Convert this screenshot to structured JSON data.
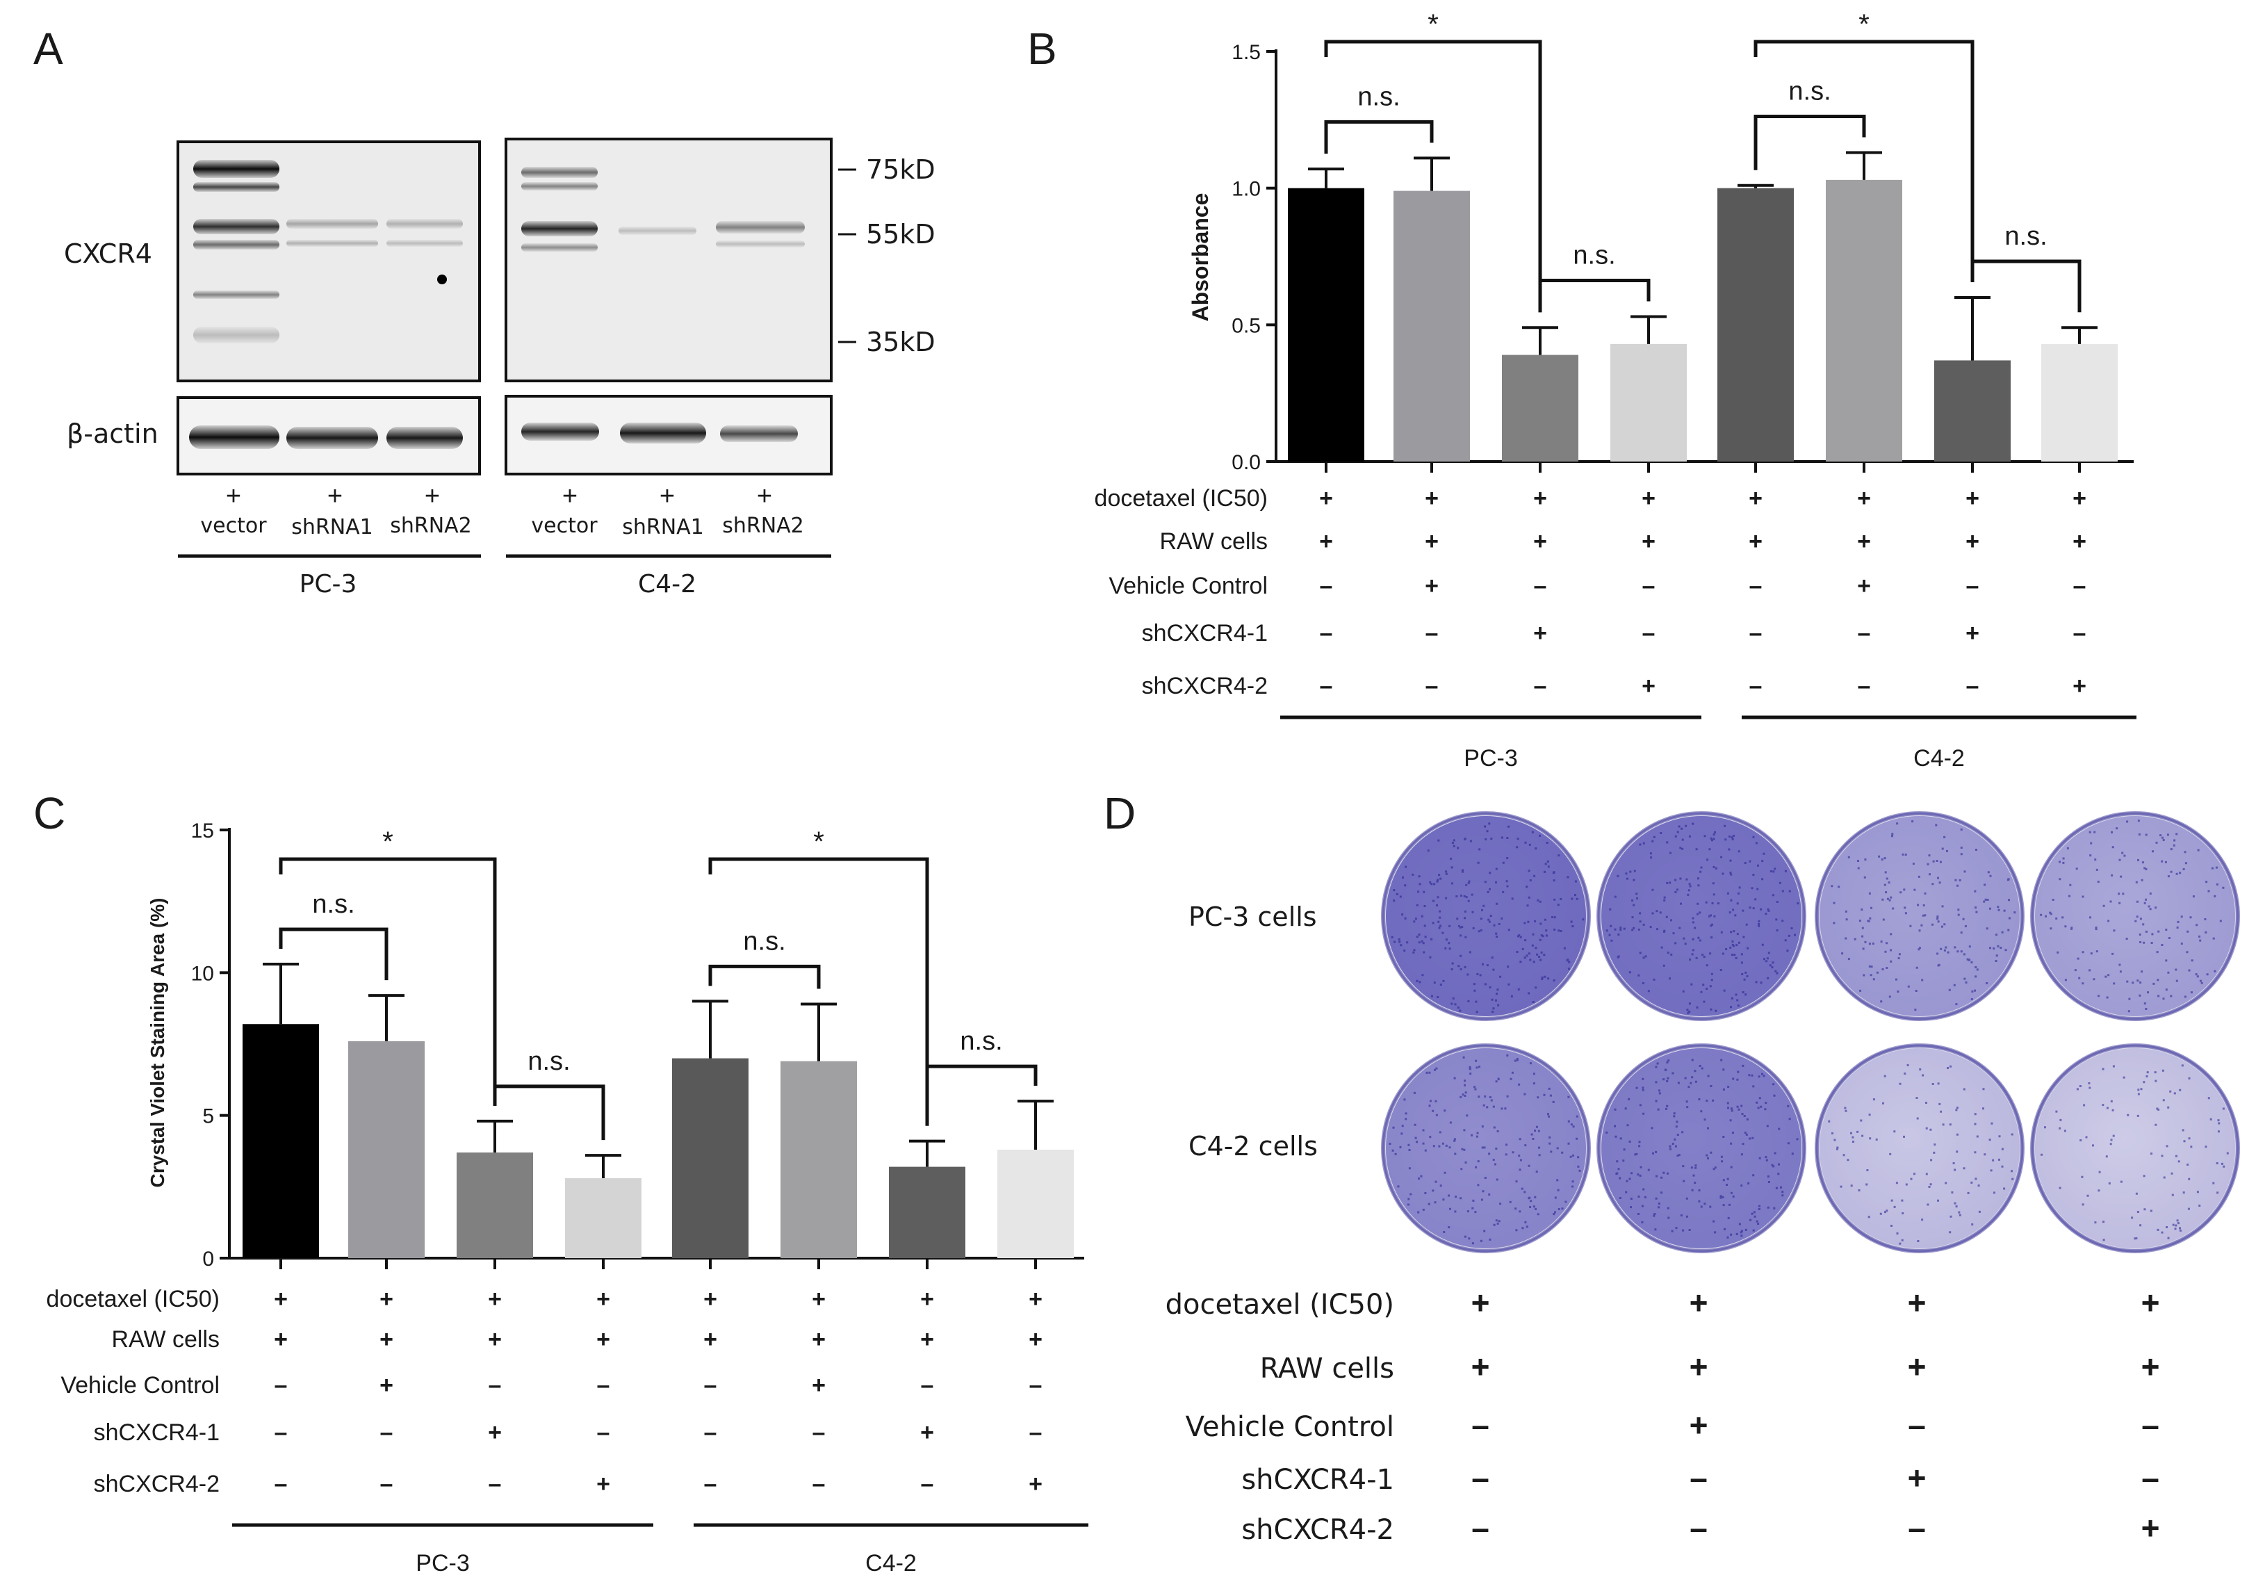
{
  "panel_letters": [
    "A",
    "B",
    "C",
    "D"
  ],
  "panelA": {
    "cxcr4_label": "CXCR4",
    "actin_label": "β-actin",
    "markers": [
      "75kD",
      "55kD",
      "35kD"
    ],
    "lane_sign": "+",
    "lanes": [
      "vector",
      "shRNA1",
      "shRNA2",
      "vector",
      "shRNA1",
      "shRNA2"
    ],
    "groups": [
      "PC-3",
      "C4-2"
    ]
  },
  "condition_labels": [
    "docetaxel (IC50)",
    "RAW cells",
    "Vehicle Control",
    "shCXCR4-1",
    "shCXCR4-2"
  ],
  "condition_matrix": [
    [
      "+",
      "+",
      "+",
      "+",
      "+",
      "+",
      "+",
      "+"
    ],
    [
      "+",
      "+",
      "+",
      "+",
      "+",
      "+",
      "+",
      "+"
    ],
    [
      "–",
      "+",
      "–",
      "–",
      "–",
      "+",
      "–",
      "–"
    ],
    [
      "–",
      "–",
      "+",
      "–",
      "–",
      "–",
      "+",
      "–"
    ],
    [
      "–",
      "–",
      "–",
      "+",
      "–",
      "–",
      "–",
      "+"
    ]
  ],
  "group_labels": [
    "PC-3",
    "C4-2"
  ],
  "bar_colors": [
    "#000000",
    "#9a9a9f",
    "#808080",
    "#d4d4d4",
    "#595959",
    "#a0a0a3",
    "#5e5e5e",
    "#e6e6e6"
  ],
  "chart_data": [
    {
      "panel": "B",
      "type": "bar",
      "ylabel": "Absorbance",
      "ylim": [
        0,
        1.5
      ],
      "yticks": [
        "0.0",
        "0.5",
        "1.0",
        "1.5"
      ],
      "groups": [
        "PC-3",
        "C4-2"
      ],
      "values": [
        1.0,
        0.99,
        0.39,
        0.43,
        1.0,
        1.03,
        0.37,
        0.43
      ],
      "errors": [
        0.07,
        0.12,
        0.1,
        0.1,
        0.01,
        0.1,
        0.23,
        0.06
      ],
      "annotations": [
        {
          "label": "n.s.",
          "from": 0,
          "to": 1
        },
        {
          "label": "n.s.",
          "from": 2,
          "to": 3
        },
        {
          "label": "*",
          "from": 0,
          "to": 2
        },
        {
          "label": "n.s.",
          "from": 4,
          "to": 5
        },
        {
          "label": "n.s.",
          "from": 6,
          "to": 7
        },
        {
          "label": "*",
          "from": 4,
          "to": 6
        }
      ]
    },
    {
      "panel": "C",
      "type": "bar",
      "ylabel": "Crystal Violet Staining Area (%)",
      "ylim": [
        0,
        15
      ],
      "yticks": [
        "0",
        "5",
        "10",
        "15"
      ],
      "groups": [
        "PC-3",
        "C4-2"
      ],
      "values": [
        8.2,
        7.6,
        3.7,
        2.8,
        7.0,
        6.9,
        3.2,
        3.8
      ],
      "errors": [
        2.1,
        1.6,
        1.1,
        0.8,
        2.0,
        2.0,
        0.9,
        1.7
      ],
      "annotations": [
        {
          "label": "n.s.",
          "from": 0,
          "to": 1
        },
        {
          "label": "n.s.",
          "from": 2,
          "to": 3
        },
        {
          "label": "*",
          "from": 0,
          "to": 2
        },
        {
          "label": "n.s.",
          "from": 4,
          "to": 5
        },
        {
          "label": "n.s.",
          "from": 6,
          "to": 7
        },
        {
          "label": "*",
          "from": 4,
          "to": 6
        }
      ]
    }
  ],
  "panelD": {
    "row_labels": [
      "PC-3 cells",
      "C4-2 cells"
    ],
    "stain_density": [
      [
        0.92,
        0.9,
        0.55,
        0.5
      ],
      [
        0.7,
        0.8,
        0.25,
        0.22
      ]
    ]
  }
}
